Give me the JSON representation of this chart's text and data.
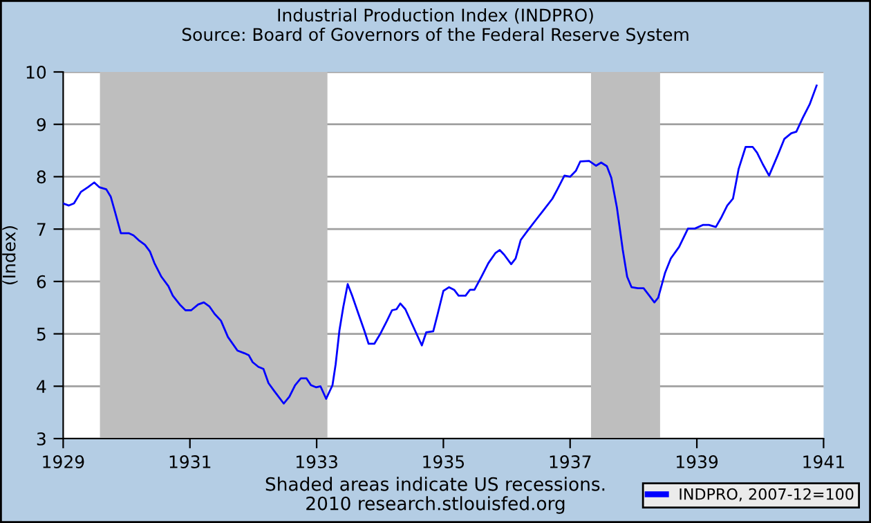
{
  "chart_data": {
    "type": "line",
    "title": "Industrial Production Index (INDPRO)",
    "subtitle": "Source: Board of Governors of the Federal Reserve System",
    "ylabel": "(Index)",
    "x": [
      1929.0,
      1929.09,
      1929.17,
      1929.28,
      1929.39,
      1929.49,
      1929.57,
      1929.68,
      1929.75,
      1929.82,
      1929.91,
      1930.04,
      1930.11,
      1930.19,
      1930.29,
      1930.37,
      1930.44,
      1930.55,
      1930.66,
      1930.73,
      1930.84,
      1930.93,
      1931.02,
      1931.13,
      1931.22,
      1931.31,
      1931.39,
      1931.49,
      1931.6,
      1931.75,
      1931.86,
      1931.93,
      1931.99,
      1932.08,
      1932.16,
      1932.24,
      1932.33,
      1932.48,
      1932.57,
      1932.66,
      1932.75,
      1932.84,
      1932.91,
      1932.99,
      1933.06,
      1933.15,
      1933.25,
      1933.3,
      1933.36,
      1933.42,
      1933.49,
      1933.56,
      1933.66,
      1933.75,
      1933.82,
      1933.91,
      1934.0,
      1934.11,
      1934.19,
      1934.26,
      1934.32,
      1934.4,
      1934.55,
      1934.66,
      1934.73,
      1934.84,
      1934.91,
      1935.0,
      1935.09,
      1935.17,
      1935.24,
      1935.35,
      1935.42,
      1935.49,
      1935.6,
      1935.71,
      1935.82,
      1935.89,
      1935.96,
      1936.07,
      1936.14,
      1936.22,
      1936.33,
      1936.47,
      1936.58,
      1936.72,
      1936.8,
      1936.91,
      1937.0,
      1937.09,
      1937.16,
      1937.3,
      1937.41,
      1937.49,
      1937.58,
      1937.65,
      1937.74,
      1937.83,
      1937.9,
      1937.97,
      1938.07,
      1938.16,
      1938.25,
      1938.33,
      1938.39,
      1938.5,
      1938.59,
      1938.72,
      1938.86,
      1938.97,
      1939.1,
      1939.19,
      1939.3,
      1939.39,
      1939.48,
      1939.57,
      1939.66,
      1939.77,
      1939.88,
      1939.95,
      1940.04,
      1940.14,
      1940.28,
      1940.38,
      1940.49,
      1940.57,
      1940.67,
      1940.78,
      1940.89
    ],
    "series": [
      {
        "name": "INDPRO, 2007-12=100",
        "color": "#0000ff",
        "values": [
          7.49,
          7.45,
          7.49,
          7.71,
          7.8,
          7.89,
          7.8,
          7.76,
          7.62,
          7.32,
          6.92,
          6.92,
          6.88,
          6.79,
          6.7,
          6.57,
          6.35,
          6.09,
          5.91,
          5.73,
          5.56,
          5.45,
          5.45,
          5.56,
          5.6,
          5.52,
          5.38,
          5.25,
          4.94,
          4.68,
          4.63,
          4.59,
          4.46,
          4.37,
          4.33,
          4.06,
          3.91,
          3.67,
          3.8,
          4.02,
          4.15,
          4.15,
          4.02,
          3.98,
          4.0,
          3.76,
          4.02,
          4.42,
          5.07,
          5.51,
          5.95,
          5.73,
          5.38,
          5.07,
          4.81,
          4.81,
          4.99,
          5.25,
          5.45,
          5.47,
          5.58,
          5.47,
          5.07,
          4.78,
          5.03,
          5.05,
          5.38,
          5.82,
          5.89,
          5.84,
          5.73,
          5.73,
          5.84,
          5.84,
          6.09,
          6.35,
          6.54,
          6.6,
          6.51,
          6.33,
          6.44,
          6.79,
          6.97,
          7.19,
          7.36,
          7.58,
          7.76,
          8.02,
          8.0,
          8.11,
          8.29,
          8.3,
          8.21,
          8.27,
          8.2,
          7.98,
          7.4,
          6.61,
          6.09,
          5.89,
          5.87,
          5.87,
          5.73,
          5.6,
          5.69,
          6.17,
          6.44,
          6.66,
          7.01,
          7.01,
          7.08,
          7.08,
          7.04,
          7.23,
          7.45,
          7.58,
          8.15,
          8.57,
          8.57,
          8.46,
          8.24,
          8.02,
          8.42,
          8.72,
          8.83,
          8.86,
          9.12,
          9.38,
          9.74
        ]
      }
    ],
    "xlim": [
      1929,
      1941
    ],
    "xticks": [
      1929,
      1931,
      1933,
      1935,
      1937,
      1939,
      1941
    ],
    "ylim": [
      3,
      10
    ],
    "yticks": [
      3,
      4,
      5,
      6,
      7,
      8,
      9,
      10
    ],
    "bands": [
      {
        "axis": "x",
        "from": 1929.58,
        "to": 1933.17,
        "color": "#bebebe"
      },
      {
        "axis": "x",
        "from": 1937.33,
        "to": 1938.42,
        "color": "#bebebe"
      }
    ],
    "annotations": [
      "Shaded areas indicate US recessions.",
      "2010 research.stlouisfed.org"
    ],
    "grid": "y",
    "legend": "bottom right",
    "marker": "none",
    "line_style": "solid"
  }
}
